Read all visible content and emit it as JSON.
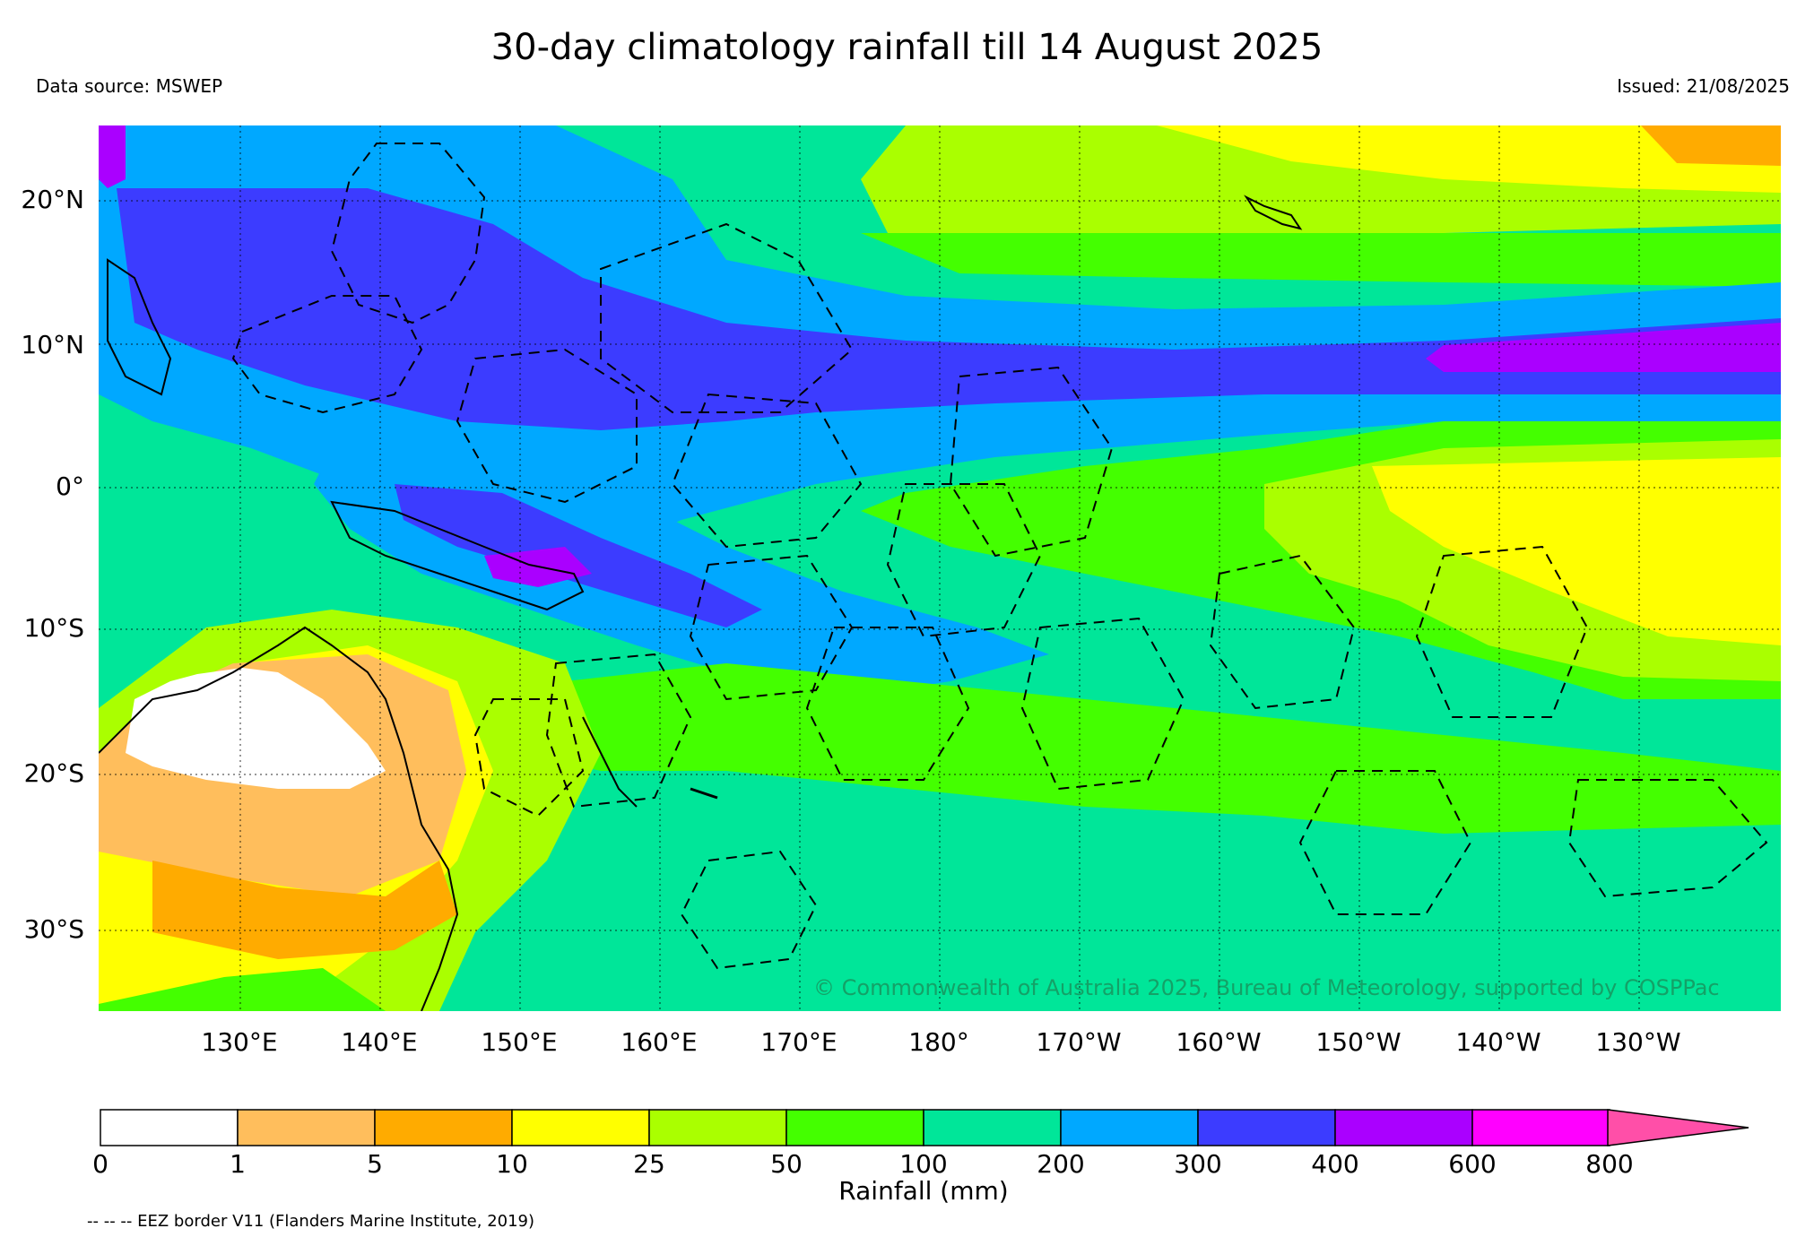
{
  "header": {
    "title": "30-day climatology rainfall till 14 August 2025",
    "data_source": "Data source: MSWEP",
    "issued": "Issued: 21/08/2025"
  },
  "map": {
    "copyright": "© Commonwealth of Australia 2025, Bureau of Meteorology, supported by COSPPac",
    "lat_labels": [
      "20°N",
      "10°N",
      "0°",
      "10°S",
      "20°S",
      "30°S"
    ],
    "lon_labels": [
      "130°E",
      "140°E",
      "150°E",
      "160°E",
      "170°E",
      "180°",
      "170°W",
      "160°W",
      "150°W",
      "140°W",
      "130°W"
    ],
    "graticule_style": "dotted"
  },
  "colorbar": {
    "title": "Rainfall (mm)",
    "ticks": [
      "0",
      "1",
      "5",
      "10",
      "25",
      "50",
      "100",
      "200",
      "300",
      "400",
      "600",
      "800"
    ],
    "colors": [
      "#ffffff",
      "#ffbe5c",
      "#ffab00",
      "#ffff00",
      "#aaff00",
      "#44ff00",
      "#00e699",
      "#00a8ff",
      "#3c3cff",
      "#aa00ff",
      "#ff00ff"
    ],
    "extend_color": "#ff4fa8"
  },
  "footer": {
    "eez_note": "-- -- -- EEZ border V11 (Flanders Marine Institute, 2019)"
  }
}
